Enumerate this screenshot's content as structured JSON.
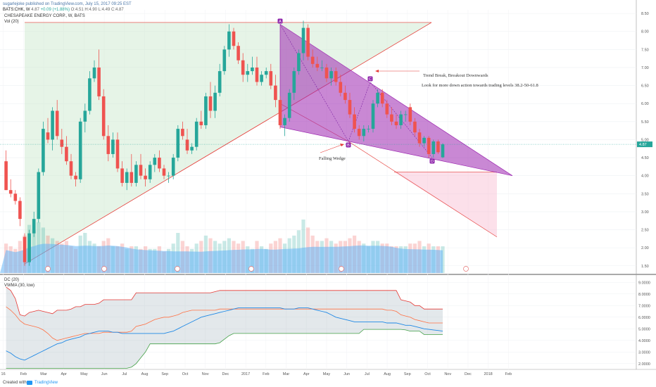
{
  "header": {
    "author_line": "sugarlejoke published on TradingView.com, July 15, 2017 09:25 EST",
    "symbol": "BATS:CHK, W",
    "price": "4.87",
    "change": "+0.09 (+1.88%)",
    "ohlc": "O:4.51 H:4.90 L:4.49 C:4.87"
  },
  "legend": {
    "title": "CHESAPEAKE ENERGY CORP., W, BATS",
    "volume": "Vol (20)"
  },
  "oscillator_legend": {
    "dc": "DC (20)",
    "vwma": "VWMA (30, low)"
  },
  "annotations": {
    "trend": "Trend Break, Breakout Downwards",
    "look": "Look for more down action towards trading levels 38.2-50-61.8",
    "wedge": "Falling Wedge",
    "labels": [
      "A",
      "B",
      "C",
      "D"
    ]
  },
  "price_tag": "4.87",
  "footer": {
    "created_with": "Created with",
    "brand": "TradingView"
  },
  "colors": {
    "up": "#26a69a",
    "down": "#ef5350",
    "wedge": "#9c27b0",
    "triangle": "#c8e6c9",
    "projection": "#f8bbd0",
    "trendline": "#e53935",
    "volume_ma": "#64b5f6",
    "dc_upper": "#e53935",
    "dc_mid": "#ff7043",
    "dc_lower": "#43a047",
    "vwma": "#1e88e5"
  },
  "chart_data": [
    {
      "type": "candlestick",
      "y_ticks": [
        "8.50",
        "8.00",
        "7.50",
        "7.00",
        "6.50",
        "6.00",
        "5.50",
        "5.00",
        "4.50",
        "4.00",
        "3.50",
        "3.00",
        "2.50",
        "2.00",
        "1.50"
      ],
      "ylim": [
        1.3,
        8.6
      ],
      "x_ticks": [
        "16",
        "Feb",
        "Mar",
        "Apr",
        "May",
        "Jun",
        "Jul",
        "Aug",
        "Sep",
        "Oct",
        "Nov",
        "Dec",
        "2017",
        "Feb",
        "Mar",
        "Apr",
        "May",
        "Jun",
        "Jul",
        "Aug",
        "Sep",
        "Oct",
        "Nov",
        "Dec",
        "2018",
        "Feb"
      ],
      "candles": [
        [
          4.4,
          4.7,
          3.6,
          3.6
        ],
        [
          3.6,
          3.9,
          3.4,
          3.5
        ],
        [
          3.5,
          3.6,
          3.2,
          3.3
        ],
        [
          3.3,
          3.4,
          2.6,
          2.8
        ],
        [
          2.3,
          2.4,
          1.5,
          1.6
        ],
        [
          1.6,
          2.5,
          1.5,
          2.4
        ],
        [
          2.4,
          3.0,
          2.3,
          2.8
        ],
        [
          2.8,
          4.2,
          2.7,
          4.1
        ],
        [
          4.1,
          5.5,
          4.0,
          5.3
        ],
        [
          5.2,
          5.6,
          4.9,
          5.0
        ],
        [
          5.0,
          5.9,
          4.7,
          5.8
        ],
        [
          5.8,
          6.1,
          5.0,
          5.1
        ],
        [
          5.0,
          5.3,
          4.6,
          4.8
        ],
        [
          4.8,
          5.1,
          4.3,
          4.4
        ],
        [
          4.4,
          4.6,
          3.9,
          4.0
        ],
        [
          4.0,
          4.1,
          3.7,
          3.9
        ],
        [
          3.9,
          5.6,
          3.8,
          5.5
        ],
        [
          5.5,
          6.0,
          5.2,
          5.8
        ],
        [
          5.8,
          6.9,
          5.7,
          6.7
        ],
        [
          6.7,
          7.2,
          6.6,
          7.0
        ],
        [
          7.0,
          7.5,
          6.1,
          6.2
        ],
        [
          6.2,
          6.4,
          5.0,
          5.1
        ],
        [
          5.1,
          5.4,
          4.4,
          4.6
        ],
        [
          4.6,
          5.2,
          4.5,
          5.0
        ],
        [
          5.0,
          5.2,
          4.1,
          4.2
        ],
        [
          4.2,
          4.4,
          3.7,
          3.8
        ],
        [
          3.8,
          4.2,
          3.6,
          4.1
        ],
        [
          4.1,
          4.6,
          3.7,
          3.8
        ],
        [
          3.8,
          4.4,
          3.7,
          4.3
        ],
        [
          4.3,
          4.6,
          3.9,
          4.0
        ],
        [
          4.0,
          4.2,
          3.7,
          3.9
        ],
        [
          3.9,
          4.4,
          3.8,
          4.3
        ],
        [
          4.3,
          4.6,
          4.1,
          4.5
        ],
        [
          4.5,
          4.7,
          4.1,
          4.2
        ],
        [
          4.2,
          4.3,
          3.9,
          4.0
        ],
        [
          4.0,
          4.1,
          3.8,
          4.0
        ],
        [
          4.0,
          4.6,
          3.9,
          4.5
        ],
        [
          4.5,
          5.4,
          4.4,
          5.3
        ],
        [
          5.3,
          5.5,
          5.0,
          5.1
        ],
        [
          5.0,
          5.3,
          4.6,
          4.7
        ],
        [
          4.7,
          4.9,
          4.6,
          4.8
        ],
        [
          4.8,
          5.6,
          4.7,
          5.5
        ],
        [
          5.5,
          5.8,
          5.3,
          5.4
        ],
        [
          5.4,
          6.3,
          5.3,
          6.2
        ],
        [
          6.2,
          6.6,
          5.6,
          5.8
        ],
        [
          5.8,
          6.5,
          5.6,
          6.3
        ],
        [
          6.3,
          7.1,
          6.2,
          6.9
        ],
        [
          6.9,
          7.6,
          6.8,
          7.5
        ],
        [
          7.5,
          8.2,
          7.3,
          8.0
        ],
        [
          8.0,
          8.1,
          7.5,
          7.6
        ],
        [
          7.6,
          7.7,
          7.1,
          7.2
        ],
        [
          7.2,
          7.4,
          6.6,
          6.8
        ],
        [
          6.8,
          7.1,
          6.6,
          6.9
        ],
        [
          6.9,
          7.3,
          6.8,
          7.0
        ],
        [
          7.0,
          7.3,
          6.5,
          6.6
        ],
        [
          6.6,
          6.9,
          6.5,
          6.8
        ],
        [
          6.8,
          7.0,
          6.7,
          6.9
        ],
        [
          6.9,
          7.1,
          6.4,
          6.5
        ],
        [
          6.5,
          6.8,
          5.9,
          6.1
        ],
        [
          6.1,
          6.2,
          5.3,
          5.4
        ],
        [
          5.4,
          5.7,
          5.1,
          5.6
        ],
        [
          5.6,
          6.4,
          5.5,
          6.3
        ],
        [
          6.3,
          7.0,
          6.1,
          6.9
        ],
        [
          6.9,
          7.5,
          6.8,
          7.4
        ],
        [
          7.4,
          8.3,
          7.2,
          8.1
        ],
        [
          8.1,
          8.2,
          7.2,
          7.3
        ],
        [
          7.3,
          7.5,
          7.0,
          7.1
        ],
        [
          7.1,
          7.3,
          6.9,
          7.0
        ],
        [
          7.0,
          7.2,
          6.9,
          7.0
        ],
        [
          7.0,
          7.1,
          6.6,
          6.7
        ],
        [
          6.7,
          7.0,
          6.5,
          6.9
        ],
        [
          6.9,
          7.0,
          6.5,
          6.6
        ],
        [
          6.6,
          6.8,
          6.2,
          6.3
        ],
        [
          6.3,
          6.5,
          6.0,
          6.1
        ],
        [
          6.1,
          6.3,
          5.6,
          5.7
        ],
        [
          5.7,
          5.9,
          5.2,
          5.3
        ],
        [
          5.3,
          5.4,
          5.0,
          5.1
        ],
        [
          5.1,
          5.4,
          4.95,
          5.3
        ],
        [
          5.3,
          5.4,
          5.2,
          5.3
        ],
        [
          5.3,
          6.1,
          5.2,
          6.0
        ],
        [
          6.0,
          6.4,
          5.9,
          6.3
        ],
        [
          6.3,
          6.4,
          5.9,
          6.0
        ],
        [
          6.0,
          6.1,
          5.6,
          5.7
        ],
        [
          5.7,
          5.9,
          5.4,
          5.5
        ],
        [
          5.5,
          5.7,
          5.3,
          5.4
        ],
        [
          5.4,
          5.8,
          5.3,
          5.7
        ],
        [
          5.7,
          5.8,
          5.5,
          5.7
        ],
        [
          5.9,
          6.0,
          5.4,
          5.5
        ],
        [
          5.5,
          5.6,
          5.1,
          5.2
        ],
        [
          5.2,
          5.3,
          4.8,
          4.9
        ],
        [
          4.9,
          5.1,
          4.8,
          5.05
        ],
        [
          5.05,
          5.1,
          4.5,
          4.6
        ],
        [
          4.6,
          5.0,
          4.5,
          4.95
        ],
        [
          4.95,
          5.0,
          4.6,
          4.65
        ],
        [
          4.51,
          4.9,
          4.49,
          4.87
        ]
      ],
      "volume_scale_note": "relative volume 0-1",
      "volume": [
        0.55,
        0.5,
        0.45,
        0.6,
        0.7,
        0.9,
        0.8,
        0.95,
        0.85,
        0.7,
        0.65,
        0.6,
        0.55,
        0.6,
        0.5,
        0.45,
        0.7,
        0.75,
        0.6,
        0.55,
        0.5,
        0.6,
        0.65,
        0.5,
        0.5,
        0.55,
        0.45,
        0.5,
        0.5,
        0.45,
        0.5,
        0.45,
        0.45,
        0.5,
        0.4,
        0.45,
        0.55,
        0.75,
        0.6,
        0.5,
        0.45,
        0.55,
        0.6,
        0.7,
        0.65,
        0.6,
        0.55,
        0.6,
        0.65,
        0.6,
        0.55,
        0.6,
        0.5,
        0.45,
        0.6,
        0.5,
        0.45,
        0.55,
        0.6,
        0.65,
        0.55,
        0.65,
        0.7,
        0.8,
        1.0,
        0.85,
        0.7,
        0.6,
        0.6,
        0.65,
        0.6,
        0.55,
        0.6,
        0.6,
        0.65,
        0.7,
        0.6,
        0.55,
        0.5,
        0.6,
        0.6,
        0.55,
        0.55,
        0.5,
        0.5,
        0.5,
        0.5,
        0.55,
        0.55,
        0.6,
        0.5,
        0.55,
        0.5,
        0.5,
        0.5
      ]
    },
    {
      "type": "line",
      "y_ticks": [
        "9.0000",
        "8.0000",
        "7.0000",
        "6.0000",
        "5.0000",
        "4.0000",
        "3.0000",
        "2.0000"
      ],
      "ylim": [
        1.5,
        9.5
      ],
      "series": [
        {
          "name": "DC upper",
          "values": [
            8.6,
            8.3,
            7.6,
            6.2,
            6.1,
            6.4,
            6.5,
            6.6,
            6.5,
            6.4,
            6.3,
            6.6,
            6.6,
            6.6,
            6.7,
            6.9,
            6.9,
            7.1,
            7.1,
            7.1,
            7.2,
            7.5,
            7.5,
            7.5,
            7.5,
            7.5,
            7.5,
            7.5,
            8.1,
            8.1,
            8.1,
            8.1,
            8.1,
            8.1,
            8.1,
            8.1,
            8.1,
            8.1,
            8.1,
            8.1,
            8.1,
            8.1,
            8.1,
            8.1,
            8.1,
            8.2,
            8.3,
            8.3,
            8.3,
            8.3,
            8.3,
            8.3,
            8.3,
            8.3,
            8.3,
            8.3,
            8.3,
            8.3,
            8.3,
            8.3,
            8.3,
            8.3,
            8.3,
            8.3,
            8.3,
            8.3,
            8.3,
            8.3,
            8.3,
            8.3,
            8.3,
            8.3,
            8.3,
            8.3,
            8.3,
            8.3,
            8.3,
            8.3,
            8.3,
            8.3,
            8.3,
            8.3,
            8.3,
            8.3,
            8.3,
            7.5,
            7.4,
            7.3,
            7.0,
            7.0,
            6.7,
            6.7,
            6.7,
            6.7,
            6.7
          ]
        },
        {
          "name": "DC mid",
          "values": [
            6.9,
            6.6,
            6.2,
            5.7,
            5.4,
            5.3,
            5.2,
            5.1,
            4.9,
            4.6,
            4.2,
            4.0,
            4.1,
            4.2,
            4.3,
            4.4,
            4.5,
            4.6,
            4.6,
            4.6,
            4.6,
            4.7,
            4.7,
            4.7,
            4.7,
            4.7,
            4.7,
            4.8,
            5.2,
            5.3,
            5.4,
            5.6,
            5.8,
            5.9,
            6.0,
            6.0,
            6.1,
            6.2,
            6.4,
            6.5,
            6.6,
            6.6,
            6.6,
            6.6,
            6.6,
            6.6,
            6.7,
            6.7,
            6.7,
            6.7,
            6.7,
            6.7,
            6.7,
            6.7,
            6.7,
            6.7,
            6.7,
            6.7,
            6.7,
            6.7,
            6.7,
            6.7,
            6.7,
            6.7,
            6.7,
            6.7,
            6.7,
            6.7,
            6.7,
            6.7,
            6.7,
            6.7,
            6.7,
            6.7,
            6.7,
            6.7,
            6.7,
            6.7,
            6.7,
            6.7,
            6.7,
            6.7,
            6.6,
            6.6,
            6.5,
            6.2,
            6.1,
            6.0,
            5.8,
            5.7,
            5.6,
            5.5,
            5.5,
            5.5,
            5.5
          ]
        },
        {
          "name": "DC lower",
          "values": [
            1.6,
            1.6,
            1.6,
            1.6,
            1.6,
            1.6,
            1.6,
            1.6,
            1.6,
            1.6,
            1.6,
            1.6,
            1.6,
            1.6,
            1.6,
            1.6,
            1.6,
            1.6,
            1.6,
            1.6,
            1.6,
            1.6,
            1.6,
            1.6,
            1.6,
            1.6,
            1.6,
            1.7,
            2.0,
            2.5,
            3.0,
            3.7,
            3.7,
            3.7,
            3.7,
            3.7,
            3.7,
            3.7,
            3.7,
            3.7,
            3.7,
            3.7,
            3.7,
            3.7,
            3.7,
            3.7,
            3.8,
            4.1,
            4.4,
            4.6,
            4.6,
            4.6,
            4.6,
            4.6,
            4.6,
            4.6,
            4.6,
            4.6,
            4.6,
            4.6,
            4.6,
            4.6,
            4.6,
            4.6,
            4.6,
            4.6,
            4.6,
            4.6,
            4.6,
            4.6,
            4.6,
            4.6,
            4.6,
            4.6,
            4.6,
            4.6,
            4.6,
            4.95,
            4.95,
            4.95,
            4.95,
            4.95,
            4.95,
            4.95,
            4.95,
            4.95,
            4.9,
            4.8,
            4.8,
            4.8,
            4.5,
            4.5,
            4.5,
            4.5,
            4.5
          ]
        },
        {
          "name": "VWMA",
          "values": [
            3.1,
            2.9,
            2.6,
            2.4,
            2.3,
            2.5,
            2.7,
            2.9,
            3.1,
            3.3,
            3.5,
            3.7,
            3.8,
            4.0,
            4.1,
            4.2,
            4.3,
            4.5,
            4.6,
            4.7,
            4.8,
            4.8,
            4.8,
            4.7,
            4.7,
            4.6,
            4.6,
            4.6,
            4.6,
            4.6,
            4.6,
            4.6,
            4.6,
            4.6,
            4.6,
            4.7,
            4.8,
            5.0,
            5.2,
            5.4,
            5.6,
            5.8,
            6.0,
            6.1,
            6.2,
            6.3,
            6.4,
            6.5,
            6.6,
            6.7,
            6.8,
            6.8,
            6.8,
            6.8,
            6.8,
            6.8,
            6.8,
            6.8,
            6.8,
            6.8,
            6.7,
            6.7,
            6.7,
            6.8,
            6.8,
            6.8,
            6.7,
            6.6,
            6.5,
            6.4,
            6.2,
            6.0,
            5.9,
            5.8,
            5.7,
            5.6,
            5.6,
            5.6,
            5.6,
            5.6,
            5.6,
            5.6,
            5.5,
            5.5,
            5.5,
            5.4,
            5.3,
            5.3,
            5.2,
            5.1,
            5.0,
            4.95,
            4.9,
            4.85,
            4.8
          ]
        }
      ]
    }
  ]
}
